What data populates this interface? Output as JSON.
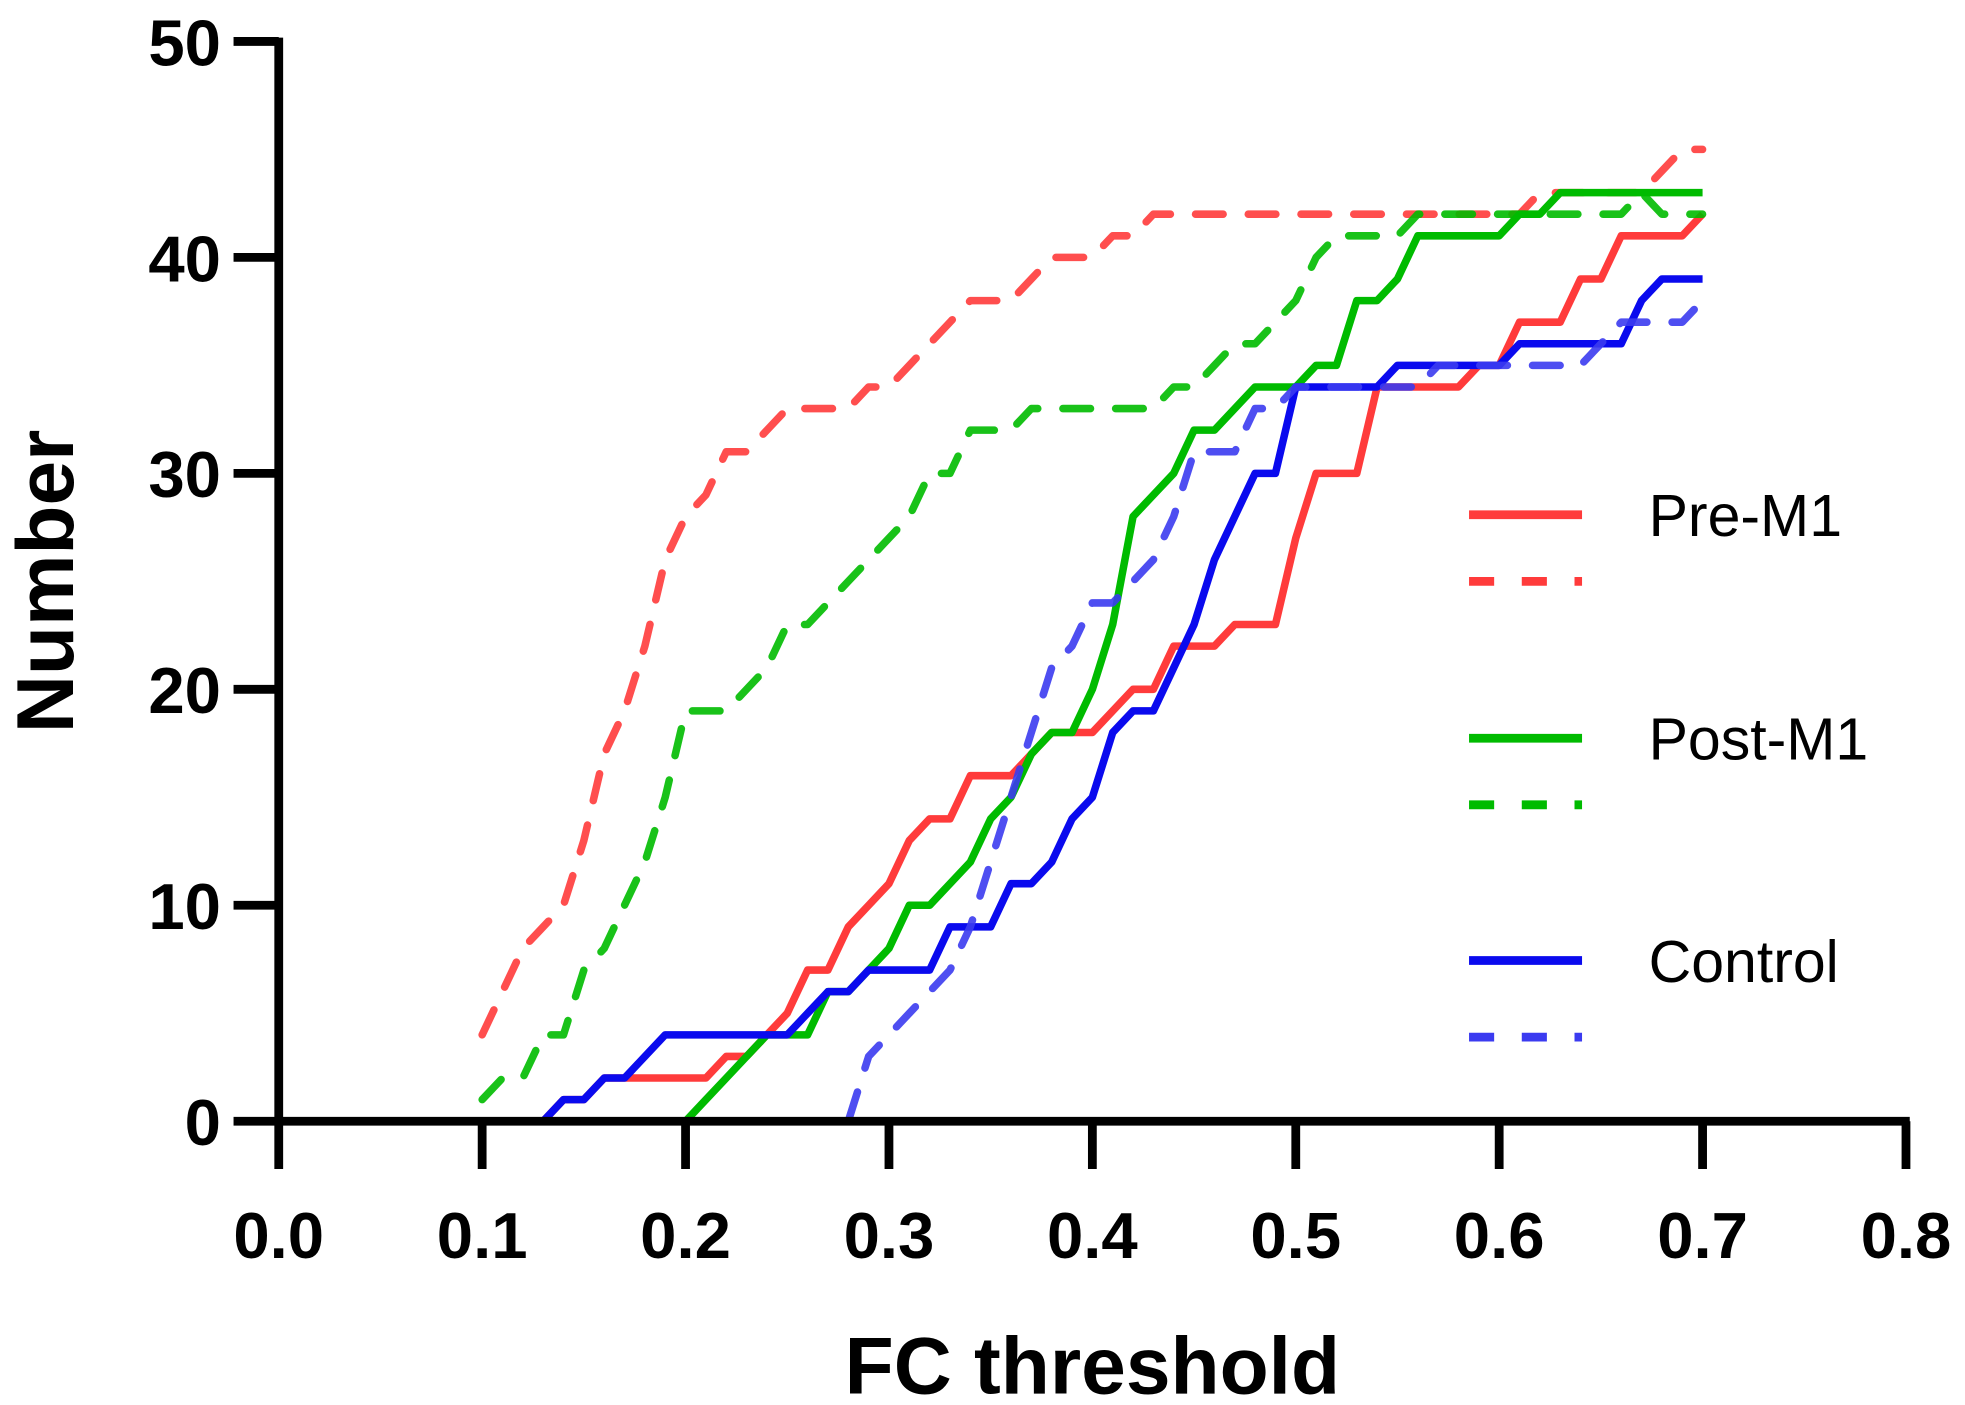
{
  "chart_data": {
    "type": "line",
    "title": "",
    "xlabel": "FC threshold",
    "ylabel": "Number",
    "xlim": [
      0,
      0.8
    ],
    "ylim": [
      0,
      50
    ],
    "xticks": [
      "0.0",
      "0.1",
      "0.2",
      "0.3",
      "0.4",
      "0.5",
      "0.6",
      "0.7",
      "0.8"
    ],
    "yticks": [
      "0",
      "10",
      "20",
      "30",
      "40",
      "50"
    ],
    "grid": false,
    "legend_position": "right",
    "x_start": 0.1,
    "x_step": 0.01,
    "series": [
      {
        "name": "Pre-M1",
        "legend_label": "Pre-M1",
        "style": "solid",
        "color": "#ff3b3b",
        "values": [
          0,
          0,
          0,
          0,
          1,
          1,
          2,
          2,
          2,
          2,
          2,
          2,
          3,
          3,
          4,
          5,
          7,
          7,
          9,
          10,
          11,
          13,
          14,
          14,
          16,
          16,
          16,
          17,
          18,
          18,
          18,
          19,
          20,
          20,
          22,
          22,
          22,
          23,
          23,
          23,
          27,
          30,
          30,
          30,
          34,
          34,
          34,
          34,
          34,
          35,
          35,
          37,
          37,
          37,
          39,
          39,
          41,
          41,
          41,
          41,
          42
        ]
      },
      {
        "name": "Pre-M1 dashed",
        "legend_label": "",
        "style": "dashed",
        "color": "#ff3b3b",
        "values": [
          4,
          6,
          8,
          9,
          10,
          13,
          17,
          19,
          22,
          26,
          28,
          29,
          31,
          31,
          32,
          33,
          33,
          33,
          33,
          34,
          34,
          35,
          36,
          37,
          38,
          38,
          38,
          39,
          40,
          40,
          40,
          41,
          41,
          42,
          42,
          42,
          42,
          42,
          42,
          42,
          42,
          42,
          42,
          42,
          42,
          42,
          42,
          42,
          42,
          42,
          42,
          42,
          43,
          43,
          43,
          43,
          43,
          43,
          44,
          45,
          45
        ]
      },
      {
        "name": "Post-M1",
        "legend_label": "Post-M1",
        "style": "solid",
        "color": "#00bb00",
        "values": [
          0,
          0,
          0,
          0,
          0,
          0,
          0,
          0,
          0,
          0,
          0,
          1,
          2,
          3,
          4,
          4,
          4,
          6,
          6,
          7,
          8,
          10,
          10,
          11,
          12,
          14,
          15,
          17,
          18,
          18,
          20,
          23,
          28,
          29,
          30,
          32,
          32,
          33,
          34,
          34,
          34,
          35,
          35,
          38,
          38,
          39,
          41,
          41,
          41,
          41,
          41,
          42,
          42,
          43,
          43,
          43,
          43,
          43,
          43,
          43,
          43
        ]
      },
      {
        "name": "Post-M1 dashed",
        "legend_label": "",
        "style": "dashed",
        "color": "#00bb00",
        "values": [
          1,
          2,
          2,
          4,
          4,
          7,
          8,
          10,
          12,
          15,
          19,
          19,
          19,
          20,
          21,
          23,
          23,
          24,
          25,
          26,
          27,
          28,
          30,
          30,
          32,
          32,
          32,
          33,
          33,
          33,
          33,
          33,
          33,
          33,
          34,
          34,
          35,
          36,
          36,
          37,
          38,
          40,
          41,
          41,
          41,
          41,
          42,
          42,
          42,
          42,
          42,
          42,
          42,
          42,
          42,
          42,
          42,
          43,
          42,
          42,
          42
        ]
      },
      {
        "name": "Control",
        "legend_label": "Control",
        "style": "solid",
        "color": "#0a0aee",
        "values": [
          0,
          0,
          0,
          0,
          1,
          1,
          2,
          2,
          3,
          4,
          4,
          4,
          4,
          4,
          4,
          4,
          5,
          6,
          6,
          7,
          7,
          7,
          7,
          9,
          9,
          9,
          11,
          11,
          12,
          14,
          15,
          18,
          19,
          19,
          21,
          23,
          26,
          28,
          30,
          30,
          34,
          34,
          34,
          34,
          34,
          35,
          35,
          35,
          35,
          35,
          35,
          36,
          36,
          36,
          36,
          36,
          36,
          38,
          39,
          39,
          39
        ]
      },
      {
        "name": "Control dashed",
        "legend_label": "",
        "style": "dashed",
        "color": "#3b3bf0",
        "values": [
          0,
          0,
          0,
          0,
          0,
          0,
          0,
          0,
          0,
          0,
          0,
          0,
          0,
          0,
          0,
          0,
          0,
          0,
          0,
          3,
          4,
          5,
          6,
          7,
          9,
          12,
          15,
          18,
          21,
          22,
          24,
          24,
          25,
          26,
          28,
          31,
          31,
          31,
          33,
          33,
          34,
          34,
          34,
          34,
          34,
          34,
          34,
          35,
          35,
          35,
          35,
          35,
          35,
          35,
          35,
          36,
          37,
          37,
          37,
          37,
          38
        ]
      }
    ]
  }
}
